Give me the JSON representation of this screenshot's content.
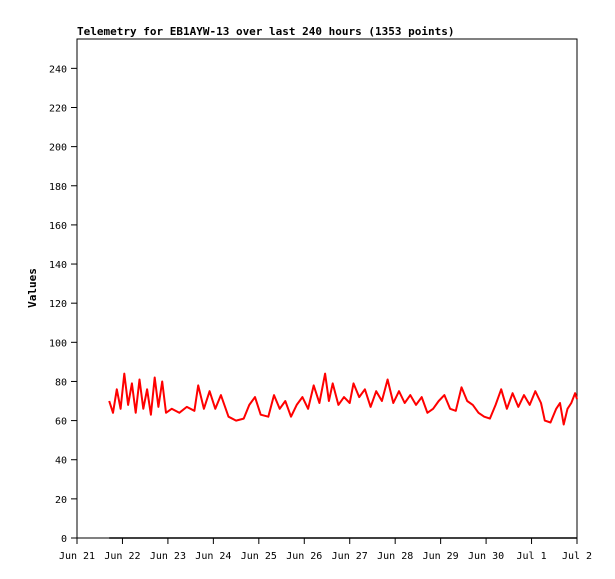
{
  "chart_data": {
    "type": "line",
    "title": "Telemetry for EB1AYW-13 over last 240 hours (1353 points)",
    "xlabel": "",
    "ylabel": "Values",
    "ylim": [
      0,
      255
    ],
    "y_ticks": [
      0,
      20,
      40,
      60,
      80,
      100,
      120,
      140,
      160,
      180,
      200,
      220,
      240
    ],
    "x_ticks": [
      "Jun 21",
      "Jun 22",
      "Jun 23",
      "Jun 24",
      "Jun 25",
      "Jun 26",
      "Jun 27",
      "Jun 28",
      "Jun 29",
      "Jun 30",
      "Jul 1",
      "Jul 2"
    ],
    "grid": false,
    "colors": {
      "series": "#ff0000",
      "baseline": "#000000",
      "axis": "#000000"
    },
    "series": [
      {
        "color": "#ff0000",
        "points": [
          [
            "2021-06-21 17:00",
            70
          ],
          [
            "2021-06-21 19:00",
            64
          ],
          [
            "2021-06-21 21:00",
            76
          ],
          [
            "2021-06-21 23:00",
            66
          ],
          [
            "2021-06-22 01:00",
            84
          ],
          [
            "2021-06-22 03:00",
            68
          ],
          [
            "2021-06-22 05:00",
            79
          ],
          [
            "2021-06-22 07:00",
            64
          ],
          [
            "2021-06-22 09:00",
            81
          ],
          [
            "2021-06-22 11:00",
            66
          ],
          [
            "2021-06-22 13:00",
            76
          ],
          [
            "2021-06-22 15:00",
            63
          ],
          [
            "2021-06-22 17:00",
            82
          ],
          [
            "2021-06-22 19:00",
            67
          ],
          [
            "2021-06-22 21:00",
            80
          ],
          [
            "2021-06-22 23:00",
            64
          ],
          [
            "2021-06-23 02:00",
            66
          ],
          [
            "2021-06-23 06:00",
            64
          ],
          [
            "2021-06-23 10:00",
            67
          ],
          [
            "2021-06-23 14:00",
            65
          ],
          [
            "2021-06-23 16:00",
            78
          ],
          [
            "2021-06-23 19:00",
            66
          ],
          [
            "2021-06-23 22:00",
            75
          ],
          [
            "2021-06-24 01:00",
            66
          ],
          [
            "2021-06-24 04:00",
            73
          ],
          [
            "2021-06-24 08:00",
            62
          ],
          [
            "2021-06-24 12:00",
            60
          ],
          [
            "2021-06-24 16:00",
            61
          ],
          [
            "2021-06-24 19:00",
            68
          ],
          [
            "2021-06-24 22:00",
            72
          ],
          [
            "2021-06-25 01:00",
            63
          ],
          [
            "2021-06-25 05:00",
            62
          ],
          [
            "2021-06-25 08:00",
            73
          ],
          [
            "2021-06-25 11:00",
            66
          ],
          [
            "2021-06-25 14:00",
            70
          ],
          [
            "2021-06-25 17:00",
            62
          ],
          [
            "2021-06-25 20:00",
            68
          ],
          [
            "2021-06-25 23:00",
            72
          ],
          [
            "2021-06-26 02:00",
            66
          ],
          [
            "2021-06-26 05:00",
            78
          ],
          [
            "2021-06-26 08:00",
            69
          ],
          [
            "2021-06-26 11:00",
            84
          ],
          [
            "2021-06-26 13:00",
            70
          ],
          [
            "2021-06-26 15:00",
            79
          ],
          [
            "2021-06-26 18:00",
            68
          ],
          [
            "2021-06-26 21:00",
            72
          ],
          [
            "2021-06-27 00:00",
            69
          ],
          [
            "2021-06-27 02:00",
            79
          ],
          [
            "2021-06-27 05:00",
            72
          ],
          [
            "2021-06-27 08:00",
            76
          ],
          [
            "2021-06-27 11:00",
            67
          ],
          [
            "2021-06-27 14:00",
            75
          ],
          [
            "2021-06-27 17:00",
            70
          ],
          [
            "2021-06-27 20:00",
            81
          ],
          [
            "2021-06-27 23:00",
            69
          ],
          [
            "2021-06-28 02:00",
            75
          ],
          [
            "2021-06-28 05:00",
            69
          ],
          [
            "2021-06-28 08:00",
            73
          ],
          [
            "2021-06-28 11:00",
            68
          ],
          [
            "2021-06-28 14:00",
            72
          ],
          [
            "2021-06-28 17:00",
            64
          ],
          [
            "2021-06-28 20:00",
            66
          ],
          [
            "2021-06-28 23:00",
            70
          ],
          [
            "2021-06-29 02:00",
            73
          ],
          [
            "2021-06-29 05:00",
            66
          ],
          [
            "2021-06-29 08:00",
            65
          ],
          [
            "2021-06-29 11:00",
            77
          ],
          [
            "2021-06-29 14:00",
            70
          ],
          [
            "2021-06-29 17:00",
            68
          ],
          [
            "2021-06-29 20:00",
            64
          ],
          [
            "2021-06-29 23:00",
            62
          ],
          [
            "2021-06-30 02:00",
            61
          ],
          [
            "2021-06-30 05:00",
            68
          ],
          [
            "2021-06-30 08:00",
            76
          ],
          [
            "2021-06-30 11:00",
            66
          ],
          [
            "2021-06-30 14:00",
            74
          ],
          [
            "2021-06-30 17:00",
            67
          ],
          [
            "2021-06-30 20:00",
            73
          ],
          [
            "2021-06-30 23:00",
            68
          ],
          [
            "2021-07-01 02:00",
            75
          ],
          [
            "2021-07-01 05:00",
            69
          ],
          [
            "2021-07-01 07:00",
            60
          ],
          [
            "2021-07-01 10:00",
            59
          ],
          [
            "2021-07-01 13:00",
            66
          ],
          [
            "2021-07-01 15:00",
            69
          ],
          [
            "2021-07-01 17:00",
            58
          ],
          [
            "2021-07-01 19:00",
            66
          ],
          [
            "2021-07-01 21:00",
            69
          ],
          [
            "2021-07-01 23:00",
            74
          ],
          [
            "2021-07-02 00:00",
            71
          ]
        ]
      },
      {
        "color": "#000000",
        "points": [
          [
            "2021-06-21 17:00",
            0
          ],
          [
            "2021-07-02 00:00",
            0
          ]
        ]
      }
    ]
  }
}
